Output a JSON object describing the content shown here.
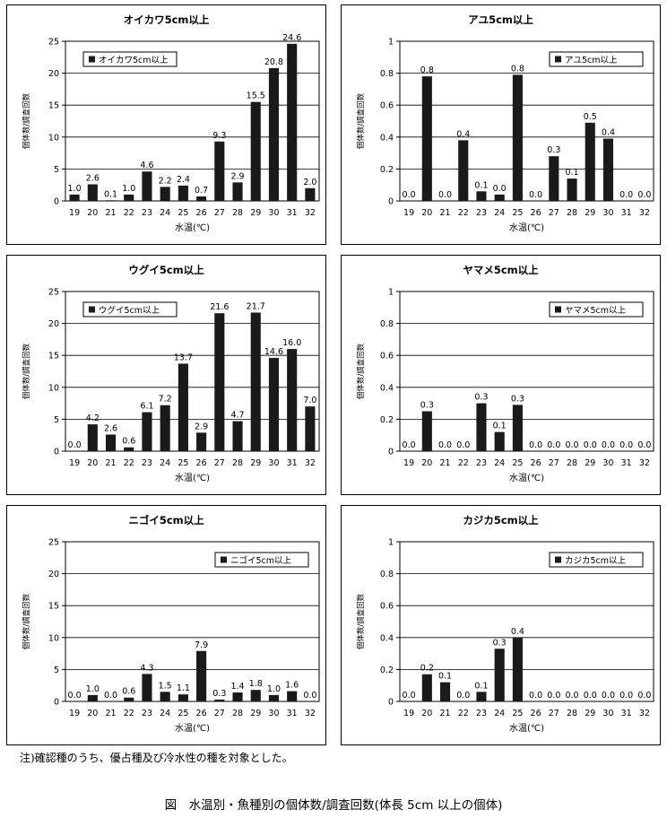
{
  "charts": [
    {
      "title": "オイカワ5cm以上",
      "legend": "オイカワ5cm以上",
      "xlabel": "水温(℃)",
      "ylabel": "個体数/調査回数",
      "legend_pos": "top-left"
    },
    {
      "title": "アユ5cm以上",
      "legend": "アユ5cm以上",
      "xlabel": "水温(℃)",
      "ylabel": "個体数/調査回数",
      "legend_pos": "top-right"
    },
    {
      "title": "ウグイ5cm以上",
      "legend": "ウグイ5cm以上",
      "xlabel": "水温(℃)",
      "ylabel": "個体数/調査回数",
      "legend_pos": "top-left"
    },
    {
      "title": "ヤマメ5cm以上",
      "legend": "ヤマメ5cm以上",
      "xlabel": "水温(℃)",
      "ylabel": "個体数/調査回数",
      "legend_pos": "top-right"
    },
    {
      "title": "ニゴイ5cm以上",
      "legend": "ニゴイ5cm以上",
      "xlabel": "水温(℃)",
      "ylabel": "個体数/調査回数",
      "legend_pos": "top-right"
    },
    {
      "title": "カジカ5cm以上",
      "legend": "カジカ5cm以上",
      "xlabel": "水温(℃)",
      "ylabel": "個体数/調査回数",
      "legend_pos": "top-right"
    }
  ],
  "chart_data": [
    {
      "type": "bar",
      "title": "オイカワ5cm以上",
      "series": [
        {
          "name": "オイカワ5cm以上",
          "values": [
            1.0,
            2.6,
            0.1,
            1.0,
            4.6,
            2.2,
            2.4,
            0.7,
            9.3,
            2.9,
            15.5,
            20.8,
            24.6,
            2.0
          ]
        }
      ],
      "categories": [
        "19",
        "20",
        "21",
        "22",
        "23",
        "24",
        "25",
        "26",
        "27",
        "28",
        "29",
        "30",
        "31",
        "32"
      ],
      "ylim": [
        0,
        25
      ],
      "yticks": [
        "0",
        "5",
        "10",
        "15",
        "20",
        "25"
      ],
      "data_labels": [
        "1.0",
        "2.6",
        "0.1",
        "1.0",
        "4.6",
        "2.2",
        "2.4",
        "0.7",
        "9.3",
        "2.9",
        "15.5",
        "20.8",
        "24.6",
        "2.0"
      ],
      "xlabel": "水温(℃)",
      "ylabel": "個体数/調査回数",
      "grid": true
    },
    {
      "type": "bar",
      "title": "アユ5cm以上",
      "series": [
        {
          "name": "アユ5cm以上",
          "values": [
            0,
            0.78,
            0,
            0.38,
            0.06,
            0.04,
            0.79,
            0,
            0.28,
            0.14,
            0.49,
            0.39,
            0,
            0
          ]
        }
      ],
      "categories": [
        "19",
        "20",
        "21",
        "22",
        "23",
        "24",
        "25",
        "26",
        "27",
        "28",
        "29",
        "30",
        "31",
        "32"
      ],
      "ylim": [
        0,
        1
      ],
      "yticks": [
        "0",
        "0.2",
        "0.4",
        "0.6",
        "0.8",
        "1"
      ],
      "data_labels": [
        "0.0",
        "0.8",
        "0.0",
        "0.4",
        "0.1",
        "0.0",
        "0.8",
        "0.0",
        "0.3",
        "0.1",
        "0.5",
        "0.4",
        "0.0",
        "0.0"
      ],
      "xlabel": "水温(℃)",
      "ylabel": "個体数/調査回数",
      "grid": true
    },
    {
      "type": "bar",
      "title": "ウグイ5cm以上",
      "series": [
        {
          "name": "ウグイ5cm以上",
          "values": [
            0.0,
            4.2,
            2.6,
            0.6,
            6.1,
            7.2,
            13.7,
            2.9,
            21.6,
            4.7,
            21.7,
            14.6,
            16.0,
            7.0
          ]
        }
      ],
      "categories": [
        "19",
        "20",
        "21",
        "22",
        "23",
        "24",
        "25",
        "26",
        "27",
        "28",
        "29",
        "30",
        "31",
        "32"
      ],
      "ylim": [
        0,
        25
      ],
      "yticks": [
        "0",
        "5",
        "10",
        "15",
        "20",
        "25"
      ],
      "data_labels": [
        "0.0",
        "4.2",
        "2.6",
        "0.6",
        "6.1",
        "7.2",
        "13.7",
        "2.9",
        "21.6",
        "4.7",
        "21.7",
        "14.6",
        "16.0",
        "7.0"
      ],
      "xlabel": "水温(℃)",
      "ylabel": "個体数/調査回数",
      "grid": true
    },
    {
      "type": "bar",
      "title": "ヤマメ5cm以上",
      "series": [
        {
          "name": "ヤマメ5cm以上",
          "values": [
            0,
            0.25,
            0,
            0,
            0.3,
            0.12,
            0.29,
            0,
            0,
            0,
            0,
            0,
            0,
            0
          ]
        }
      ],
      "categories": [
        "19",
        "20",
        "21",
        "22",
        "23",
        "24",
        "25",
        "26",
        "27",
        "28",
        "29",
        "30",
        "31",
        "32"
      ],
      "ylim": [
        0,
        1
      ],
      "yticks": [
        "0",
        "0.2",
        "0.4",
        "0.6",
        "0.8",
        "1"
      ],
      "data_labels": [
        "0.0",
        "0.3",
        "0.0",
        "0.0",
        "0.3",
        "0.1",
        "0.3",
        "0.0",
        "0.0",
        "0.0",
        "0.0",
        "0.0",
        "0.0",
        "0.0"
      ],
      "xlabel": "水温(℃)",
      "ylabel": "個体数/調査回数",
      "grid": true
    },
    {
      "type": "bar",
      "title": "ニゴイ5cm以上",
      "series": [
        {
          "name": "ニゴイ5cm以上",
          "values": [
            0.0,
            1.0,
            0.0,
            0.6,
            4.3,
            1.5,
            1.1,
            7.9,
            0.3,
            1.4,
            1.8,
            1.0,
            1.6,
            0.0
          ]
        }
      ],
      "categories": [
        "19",
        "20",
        "21",
        "22",
        "23",
        "24",
        "25",
        "26",
        "27",
        "28",
        "29",
        "30",
        "31",
        "32"
      ],
      "ylim": [
        0,
        25
      ],
      "yticks": [
        "0",
        "5",
        "10",
        "15",
        "20",
        "25"
      ],
      "data_labels": [
        "0.0",
        "1.0",
        "0.0",
        "0.6",
        "4.3",
        "1.5",
        "1.1",
        "7.9",
        "0.3",
        "1.4",
        "1.8",
        "1.0",
        "1.6",
        "0.0"
      ],
      "xlabel": "水温(℃)",
      "ylabel": "個体数/調査回数",
      "grid": true
    },
    {
      "type": "bar",
      "title": "カジカ5cm以上",
      "series": [
        {
          "name": "カジカ5cm以上",
          "values": [
            0,
            0.17,
            0.12,
            0,
            0.06,
            0.33,
            0.4,
            0,
            0,
            0,
            0,
            0,
            0,
            0
          ]
        }
      ],
      "categories": [
        "19",
        "20",
        "21",
        "22",
        "23",
        "24",
        "25",
        "26",
        "27",
        "28",
        "29",
        "30",
        "31",
        "32"
      ],
      "ylim": [
        0,
        1
      ],
      "yticks": [
        "0",
        "0.2",
        "0.4",
        "0.6",
        "0.8",
        "1"
      ],
      "data_labels": [
        "0.0",
        "0.2",
        "0.1",
        "0.0",
        "0.1",
        "0.3",
        "0.4",
        "0.0",
        "0.0",
        "0.0",
        "0.0",
        "0.0",
        "0.0",
        "0.0"
      ],
      "xlabel": "水温(℃)",
      "ylabel": "個体数/調査回数",
      "grid": true
    }
  ],
  "footnote": "注)確認種のうち、優占種及び冷水性の種を対象とした。",
  "caption": "図　水温別・魚種別の個体数/調査回数(体長 5cm 以上の個体)"
}
